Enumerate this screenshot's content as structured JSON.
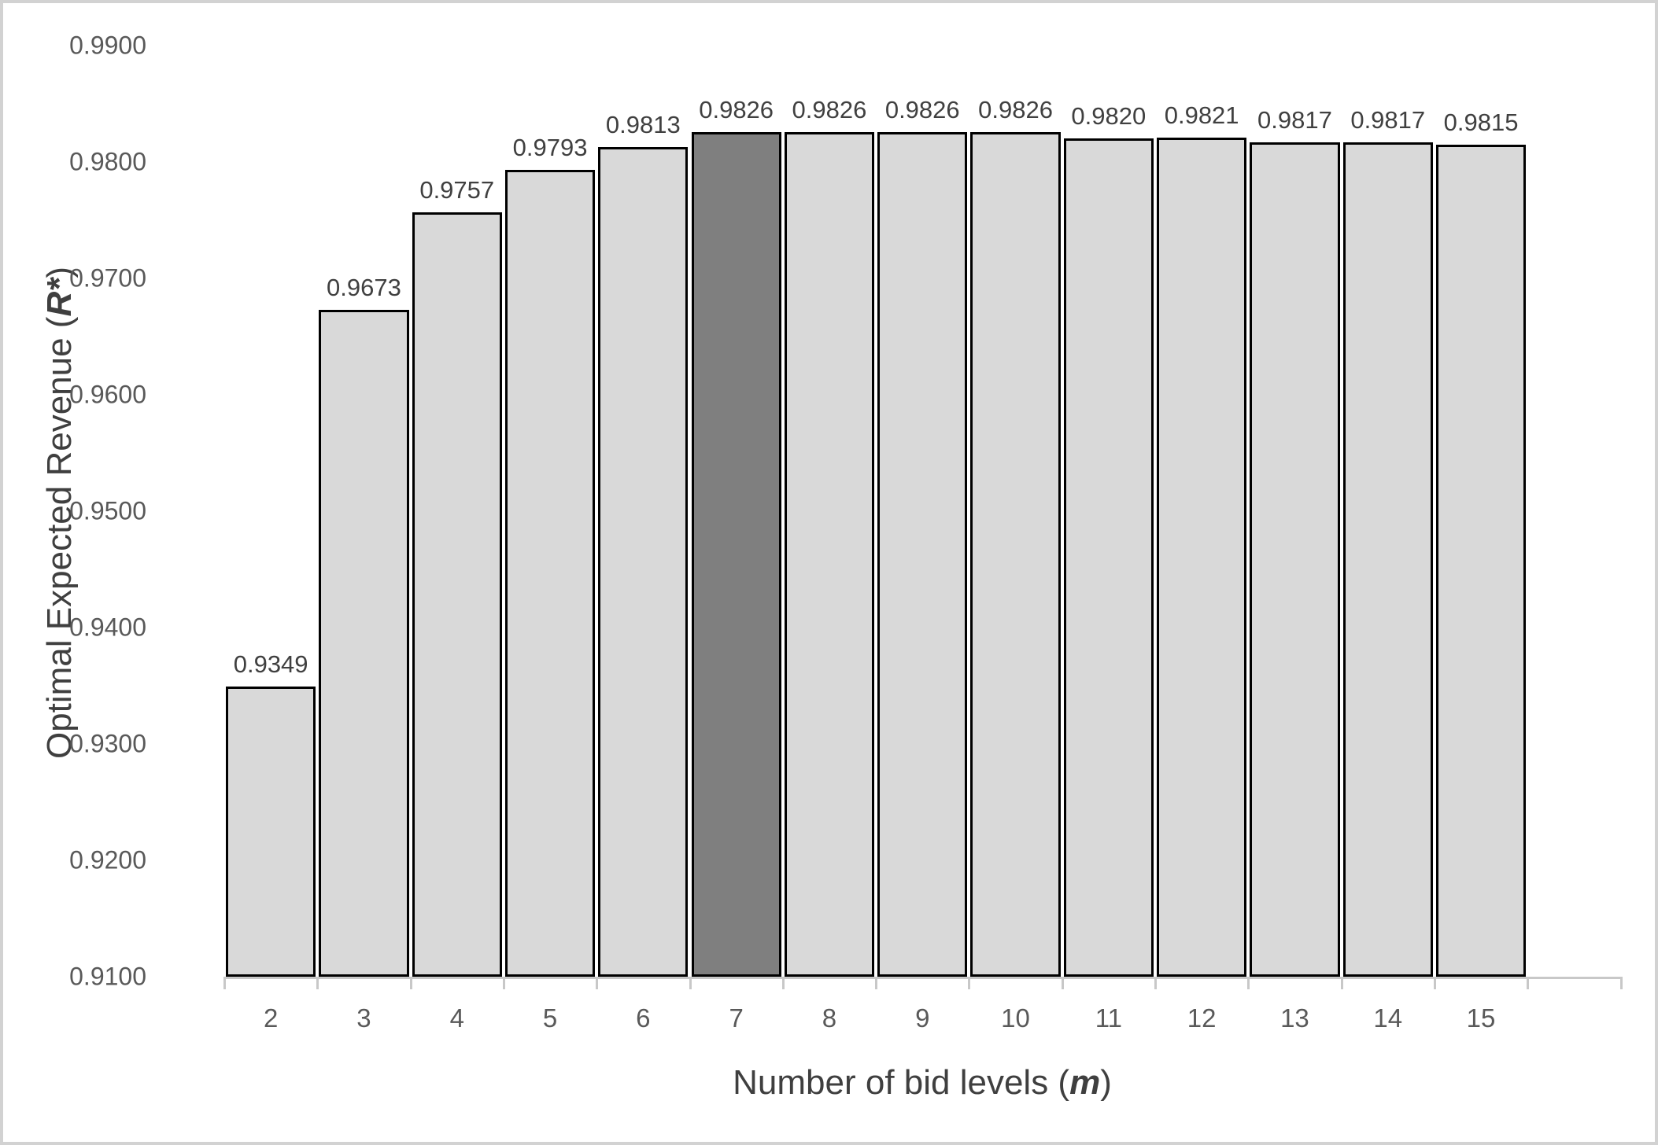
{
  "figure": {
    "background": "#ffffff",
    "frame_color": "#d2d2d2"
  },
  "chart_data": {
    "type": "bar",
    "title": "",
    "xlabel_prefix": "Number of bid levels (",
    "xlabel_var": "m",
    "xlabel_suffix": ")",
    "ylabel_prefix": "Optimal Expected Revenue (",
    "ylabel_var": "R*",
    "ylabel_suffix": ")",
    "categories": [
      "2",
      "3",
      "4",
      "5",
      "6",
      "7",
      "8",
      "9",
      "10",
      "11",
      "12",
      "13",
      "14",
      "15"
    ],
    "values": [
      0.9349,
      0.9673,
      0.9757,
      0.9793,
      0.9813,
      0.9826,
      0.9826,
      0.9826,
      0.9826,
      0.982,
      0.9821,
      0.9817,
      0.9817,
      0.9815
    ],
    "data_labels": [
      "0.9349",
      "0.9673",
      "0.9757",
      "0.9793",
      "0.9813",
      "0.9826",
      "0.9826",
      "0.9826",
      "0.9826",
      "0.9820",
      "0.9821",
      "0.9817",
      "0.9817",
      "0.9815"
    ],
    "highlighted_category": "7",
    "y_ticks": [
      "0.9100",
      "0.9200",
      "0.9300",
      "0.9400",
      "0.9500",
      "0.9600",
      "0.9700",
      "0.9800",
      "0.9900"
    ],
    "y_tick_values": [
      0.91,
      0.92,
      0.93,
      0.94,
      0.95,
      0.96,
      0.97,
      0.98,
      0.99
    ],
    "ylim": [
      0.91,
      0.99
    ],
    "grid": "off",
    "legend": "none",
    "colors": {
      "bar_fill": "#d9d9d9",
      "bar_highlight_fill": "#7f7f7f",
      "bar_border": "#000000",
      "axis_line": "#c8c8c8",
      "tick_label": "#595959",
      "data_label": "#404040",
      "axis_title": "#3f3f3f"
    }
  }
}
